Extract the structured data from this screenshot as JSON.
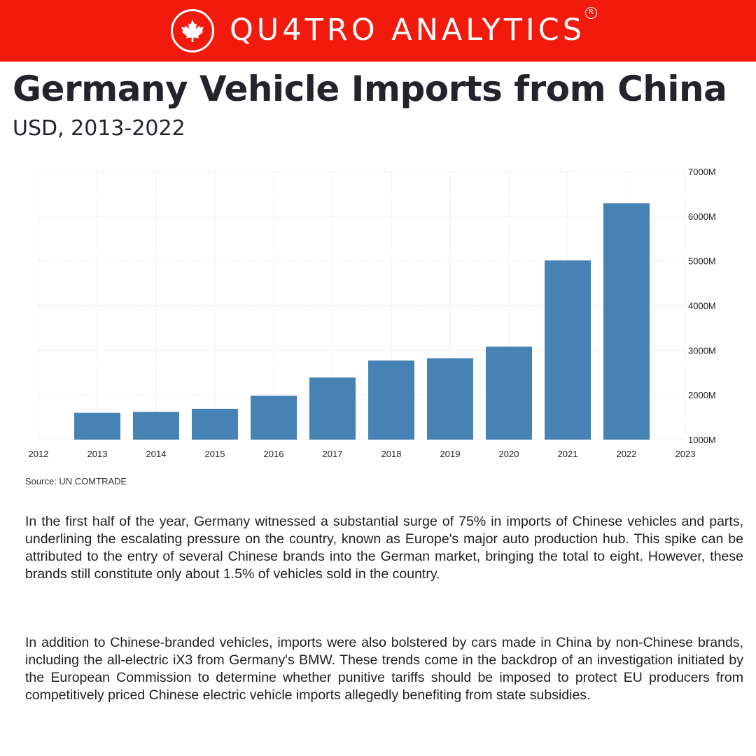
{
  "header": {
    "brand": "QU4TRO ANALYTICS",
    "registered_mark": "R",
    "brand_color": "#f11a0c",
    "brand_icon": "maple-leaf-icon"
  },
  "title": "Germany Vehicle Imports from China",
  "subtitle": "USD, 2013-2022",
  "chart_data": {
    "type": "bar",
    "categories": [
      "2013",
      "2014",
      "2015",
      "2016",
      "2017",
      "2018",
      "2019",
      "2020",
      "2021",
      "2022"
    ],
    "values": [
      1600,
      1620,
      1690,
      1980,
      2390,
      2770,
      2820,
      3080,
      5010,
      6290
    ],
    "value_unit": "USD millions",
    "title": "",
    "xlabel": "",
    "ylabel": "",
    "ylim": [
      1000,
      7000
    ],
    "yticks": [
      1000,
      2000,
      3000,
      4000,
      5000,
      6000,
      7000
    ],
    "ytick_labels": [
      "1000M",
      "2000M",
      "3000M",
      "4000M",
      "5000M",
      "6000M",
      "7000M"
    ],
    "xlim": [
      2012,
      2023
    ],
    "xtick_labels": [
      "2012",
      "2013",
      "2014",
      "2015",
      "2016",
      "2017",
      "2018",
      "2019",
      "2020",
      "2021",
      "2022",
      "2023"
    ],
    "y_axis_side": "right",
    "grid": true,
    "legend": "none",
    "bar_color": "#4682b4"
  },
  "source": "Source: UN COMTRADE",
  "paragraphs": [
    "In the first half of the year, Germany witnessed a substantial surge of 75% in imports of Chinese vehicles and parts, underlining the escalating pressure on the country, known as Europe's major auto production hub. This spike can be attributed to the entry of several Chinese brands into the German market, bringing the total to eight. However, these brands still constitute only about 1.5% of vehicles sold in the country.",
    "In addition to Chinese-branded vehicles, imports were also bolstered by cars made in China by non-Chinese brands, including the all-electric iX3 from Germany's BMW. These trends come in the backdrop of an investigation initiated by the European Commission to determine whether punitive tariffs should be imposed to protect EU producers from competitively priced Chinese electric vehicle imports allegedly benefiting from state subsidies."
  ]
}
